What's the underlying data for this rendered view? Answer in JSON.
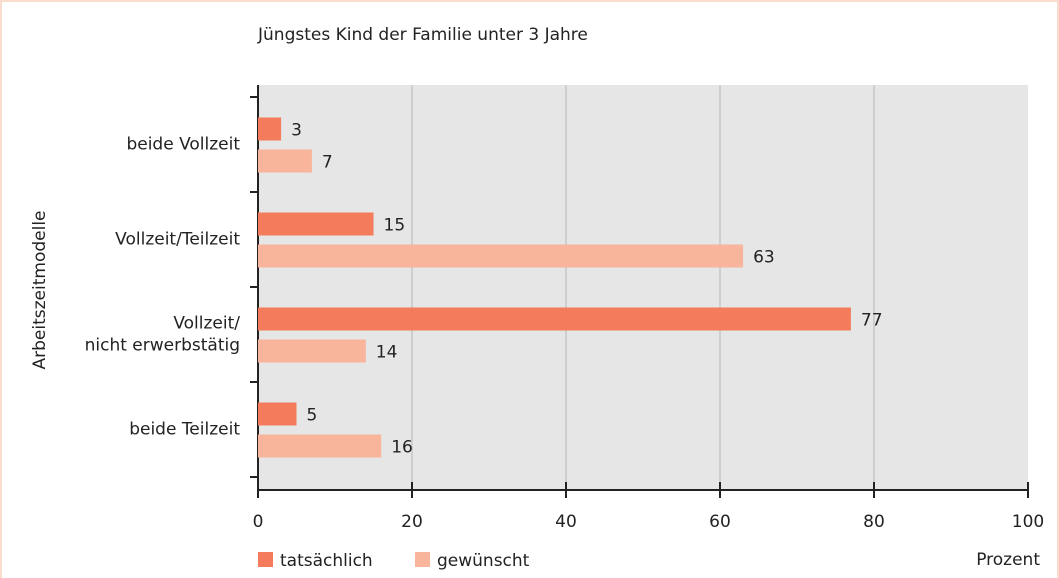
{
  "chart_data": {
    "type": "bar",
    "orientation": "horizontal",
    "title": "Jüngstes Kind der Familie unter 3 Jahre",
    "ylabel": "Arbeitszeitmodelle",
    "xlabel": "Prozent",
    "categories": [
      "beide Vollzeit",
      "Vollzeit/Teilzeit",
      "Vollzeit/\nnicht erwerbstätig",
      "beide Teilzeit"
    ],
    "series": [
      {
        "name": "tatsächlich",
        "color": "#f47c5c",
        "values": [
          3,
          15,
          77,
          5
        ]
      },
      {
        "name": "gewünscht",
        "color": "#f8b59c",
        "values": [
          7,
          63,
          14,
          16
        ]
      }
    ],
    "xlim": [
      0,
      100
    ],
    "xticks": [
      0,
      20,
      40,
      60,
      80,
      100
    ],
    "grid": true,
    "legend": "bottom-left"
  }
}
